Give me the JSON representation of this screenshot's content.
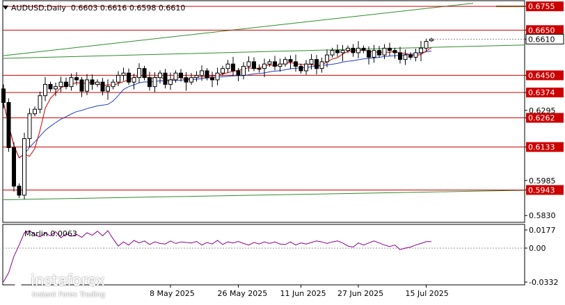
{
  "chart_data": {
    "type": "candlestick",
    "title": "AUDUSD,Daily  0.6603 0.6616 0.6598 0.6610",
    "symbol": "AUDUSD",
    "timeframe": "Daily",
    "ohlc_header": {
      "open": 0.6603,
      "high": 0.6616,
      "low": 0.6598,
      "close": 0.661
    },
    "y_axis": {
      "range": [
        0.58,
        0.678
      ],
      "ticks": [
        "0.6755",
        "0.6650",
        "0.6610",
        "0.6450",
        "0.6374",
        "0.6295",
        "0.6262",
        "0.6133",
        "0.5985",
        "0.5943",
        "0.5830"
      ]
    },
    "x_axis": {
      "tick_labels": [
        "8 May 2025",
        "26 May 2025",
        "11 Jun 2025",
        "27 Jun 2025",
        "15 Jul 2025"
      ],
      "tick_bar_index": [
        32,
        45,
        57,
        68,
        81
      ]
    },
    "levels": [
      {
        "value": 0.6755,
        "label": "0.6755",
        "color": "#cc0000"
      },
      {
        "value": 0.665,
        "label": "0.6650",
        "color": "#cc0000"
      },
      {
        "value": 0.645,
        "label": "0.6450",
        "color": "#cc0000"
      },
      {
        "value": 0.6374,
        "label": "0.6374",
        "color": "#cc0000"
      },
      {
        "value": 0.6262,
        "label": "0.6262",
        "color": "#cc0000"
      },
      {
        "value": 0.6133,
        "label": "0.6133",
        "color": "#cc0000"
      },
      {
        "value": 0.5943,
        "label": "0.5943",
        "color": "#cc0000"
      }
    ],
    "current_price": {
      "value": 0.661,
      "label": "0.6610"
    },
    "channel_lines": [
      {
        "name": "upper",
        "points": [
          [
            0,
            0.6537
          ],
          [
            90,
            0.6769
          ]
        ],
        "color": "#2e8b2e"
      },
      {
        "name": "middle",
        "points": [
          [
            0,
            0.6525
          ],
          [
            101,
            0.6585
          ]
        ],
        "color": "#2e8b2e"
      },
      {
        "name": "lower",
        "points": [
          [
            0,
            0.59
          ],
          [
            101,
            0.5942
          ]
        ],
        "color": "#2e8b2e"
      }
    ],
    "closes": [
      0.633,
      0.613,
      0.596,
      0.592,
      0.617,
      0.628,
      0.63,
      0.636,
      0.641,
      0.639,
      0.64,
      0.642,
      0.64,
      0.644,
      0.643,
      0.638,
      0.643,
      0.641,
      0.642,
      0.638,
      0.64,
      0.642,
      0.645,
      0.646,
      0.642,
      0.644,
      0.648,
      0.644,
      0.64,
      0.644,
      0.646,
      0.641,
      0.643,
      0.646,
      0.644,
      0.642,
      0.644,
      0.645,
      0.647,
      0.644,
      0.643,
      0.646,
      0.648,
      0.65,
      0.647,
      0.645,
      0.649,
      0.651,
      0.648,
      0.648,
      0.65,
      0.651,
      0.649,
      0.65,
      0.652,
      0.651,
      0.649,
      0.647,
      0.65,
      0.652,
      0.648,
      0.651,
      0.654,
      0.656,
      0.655,
      0.656,
      0.657,
      0.655,
      0.657,
      0.656,
      0.653,
      0.656,
      0.654,
      0.657,
      0.656,
      0.655,
      0.652,
      0.654,
      0.653,
      0.655,
      0.657,
      0.66,
      0.661
    ],
    "moving_averages": [
      {
        "name": "fast",
        "color": "#cc0000"
      },
      {
        "name": "slow",
        "color": "#1f3fbf"
      }
    ],
    "oscillator": {
      "name": "Marlin",
      "label": "Marlin 0.0063",
      "value": 0.0063,
      "color": "#8b008b",
      "range": [
        -0.0332,
        0.0177
      ],
      "ticks": [
        "0.0177",
        "0.00",
        "-0.0332"
      ],
      "values": [
        -0.033,
        -0.024,
        -0.008,
        0.003,
        0.015,
        0.017,
        0.013,
        0.011,
        0.0145,
        0.012,
        0.016,
        0.01,
        0.014,
        0.0115,
        0.0135,
        0.0105,
        0.015,
        0.0125,
        0.0165,
        0.012,
        0.017,
        0.009,
        0.002,
        0.006,
        0.003,
        0.0075,
        0.005,
        0.007,
        0.0035,
        0.006,
        0.0045,
        0.004,
        0.007,
        0.0045,
        0.006,
        0.0055,
        0.005,
        0.0065,
        0.003,
        0.0055,
        0.004,
        0.0075,
        0.0035,
        0.006,
        0.005,
        0.0065,
        0.0045,
        0.003,
        0.0055,
        0.004,
        0.006,
        0.0045,
        0.006,
        0.004,
        0.0035,
        0.006,
        0.003,
        0.005,
        0.004,
        0.0055,
        0.007,
        0.006,
        0.0045,
        0.006,
        0.007,
        0.005,
        0.002,
        0.001,
        0.005,
        0.003,
        0.005,
        0.007,
        0.005,
        0.003,
        0.0015,
        0.003,
        -0.0015,
        0.0,
        0.001,
        0.003,
        0.0045,
        0.0063,
        0.0063
      ]
    },
    "grid": false,
    "legend": "none"
  },
  "watermark": {
    "brand": "instaforex",
    "tagline": "Instant Forex Trading"
  }
}
